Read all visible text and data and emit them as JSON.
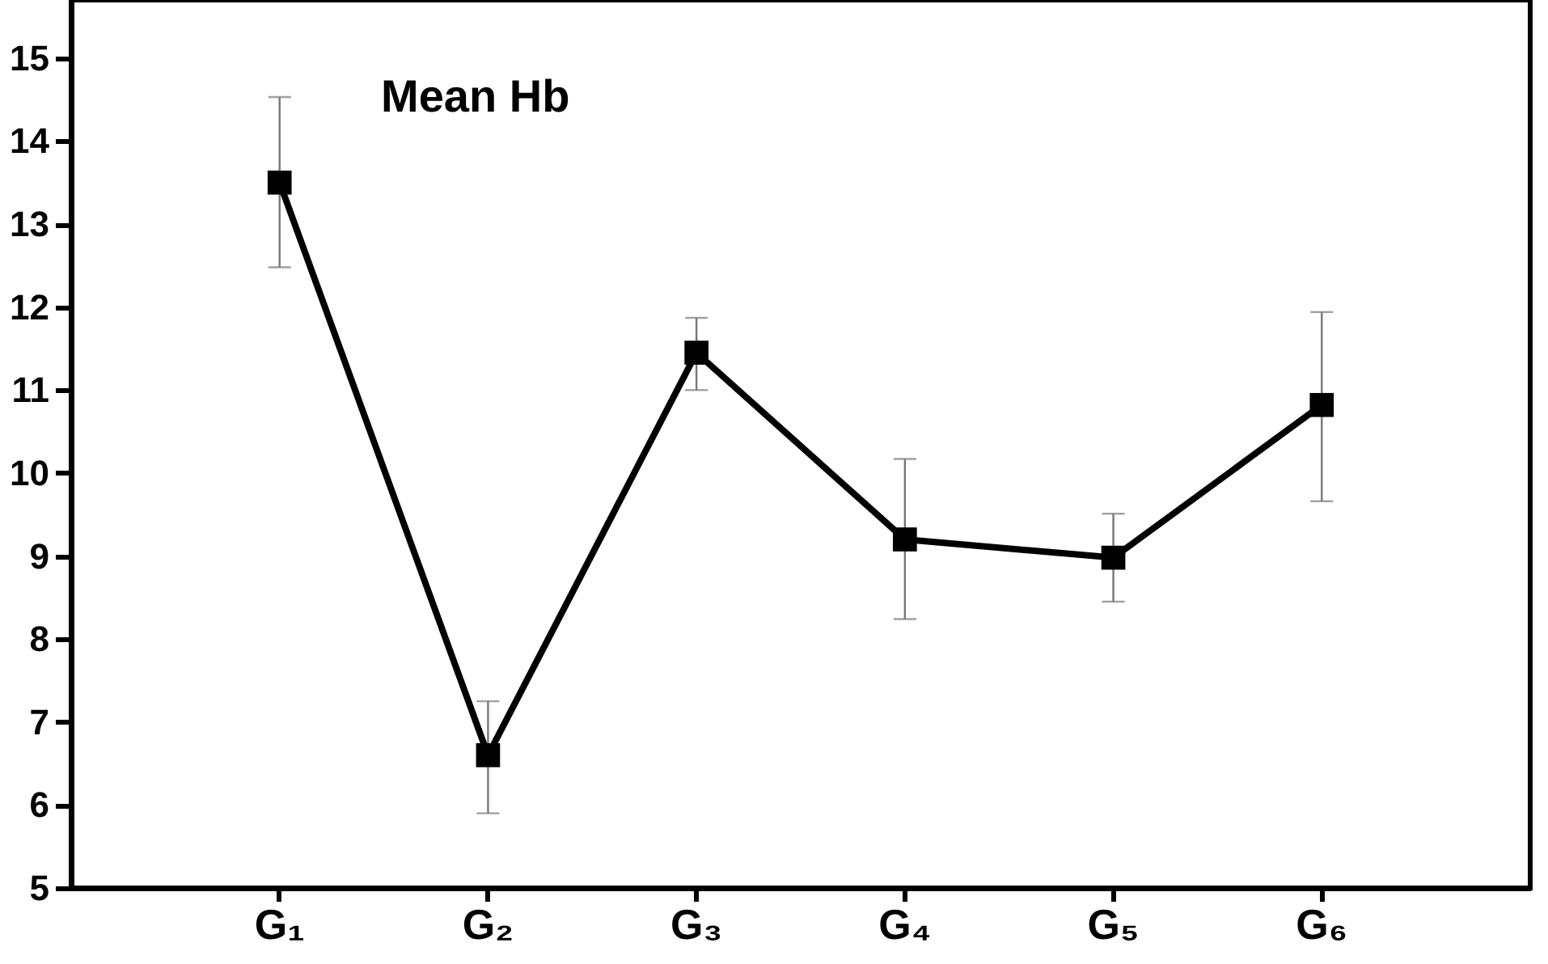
{
  "chart_data": {
    "type": "line",
    "title": "Mean Hb",
    "categories": [
      "G₁",
      "G₂",
      "G₃",
      "G₄",
      "G₅",
      "G₆"
    ],
    "series": [
      {
        "color": "#000000",
        "values": [
          13.5,
          6.6,
          11.45,
          9.2,
          8.98,
          10.82
        ],
        "errors": [
          [
            12.48,
            14.53
          ],
          [
            5.9,
            7.25
          ],
          [
            11.0,
            11.87
          ],
          [
            8.24,
            10.17
          ],
          [
            8.45,
            9.51
          ],
          [
            9.66,
            11.94
          ]
        ]
      }
    ],
    "ylim": [
      5,
      15.7
    ],
    "yticks": [
      5,
      6,
      7,
      8,
      9,
      10,
      11,
      12,
      13,
      14,
      15
    ],
    "marker": "square",
    "line_style": "solid",
    "grid": false,
    "legend": false
  }
}
